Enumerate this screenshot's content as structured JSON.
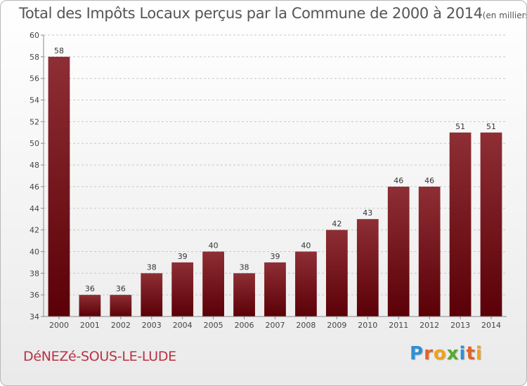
{
  "header": {
    "title": "Total des Impôts Locaux perçus par la Commune de 2000 à 2014",
    "unit": "(en milliers d'€)"
  },
  "footer": {
    "commune": "DéNEZé-SOUS-LE-LUDE",
    "logo_letters": [
      "P",
      "r",
      "o",
      "x",
      "i",
      "t",
      "i"
    ],
    "logo_colors": [
      "#2e8fd6",
      "#e2622a",
      "#f0a21c",
      "#54ab2f",
      "#2e8fd6",
      "#e2622a",
      "#f0a21c"
    ]
  },
  "chart_data": {
    "type": "bar",
    "categories": [
      "2000",
      "2001",
      "2002",
      "2003",
      "2004",
      "2005",
      "2006",
      "2007",
      "2008",
      "2009",
      "2010",
      "2011",
      "2012",
      "2013",
      "2014"
    ],
    "values": [
      58,
      36,
      36,
      38,
      39,
      40,
      38,
      39,
      40,
      42,
      43,
      46,
      46,
      51,
      51
    ],
    "data_labels": [
      "58",
      "36",
      "36",
      "38",
      "39",
      "40",
      "38",
      "39",
      "40",
      "42",
      "43",
      "46",
      "46",
      "51",
      "51"
    ],
    "title": "Total des Impôts Locaux perçus par la Commune de 2000 à 2014",
    "ylim": [
      34,
      60
    ],
    "yticks": [
      34,
      36,
      38,
      40,
      42,
      44,
      46,
      48,
      50,
      52,
      54,
      56,
      58,
      60
    ],
    "grid": true,
    "bar_color_top": "#8e2e35",
    "bar_color_bottom": "#5a0006"
  }
}
